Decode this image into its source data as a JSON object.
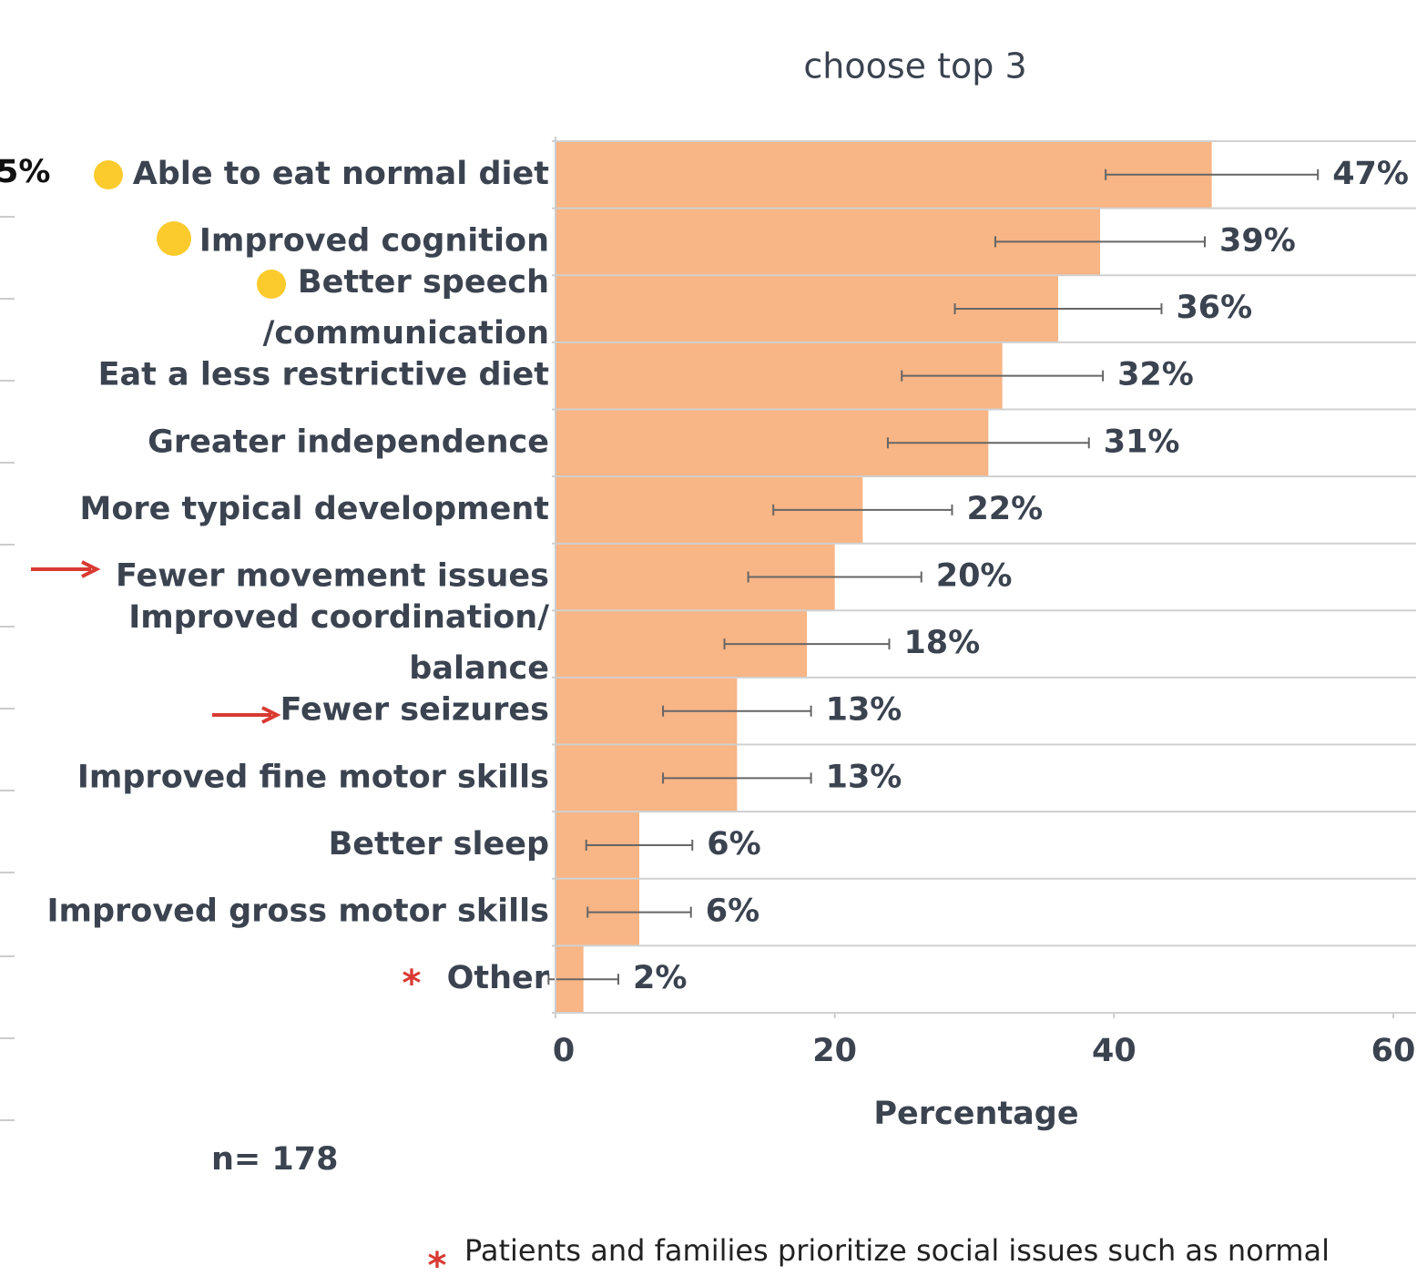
{
  "chart_data": {
    "type": "bar",
    "orientation": "horizontal",
    "title": "choose top 3",
    "x_label": "Percentage",
    "clipped_left_label": "5%",
    "sample_size": "n= 178",
    "category_marker": "*",
    "footnote_marker": "*",
    "footnote": "Patients and families prioritize social issues such as normal",
    "categories": [
      "Able to eat normal diet",
      "Improved cognition",
      "Better speech\n/communication",
      "Eat a less restrictive diet",
      "Greater independence",
      "More typical development",
      "Fewer movement issues",
      "Improved coordination/\nbalance",
      "Fewer seizures",
      "Improved fine motor skills",
      "Better sleep",
      "Improved gross motor skills",
      "Other"
    ],
    "values": [
      47,
      39,
      36,
      32,
      31,
      22,
      20,
      18,
      13,
      13,
      6,
      6,
      2
    ],
    "value_labels": [
      "47%",
      "39%",
      "36%",
      "32%",
      "31%",
      "22%",
      "20%",
      "18%",
      "13%",
      "13%",
      "6%",
      "6%",
      "2%"
    ],
    "errors": [
      7.6,
      7.5,
      7.4,
      7.2,
      7.2,
      6.4,
      6.2,
      5.9,
      5.3,
      5.3,
      3.8,
      3.7,
      2.5
    ],
    "color": "#f8b585",
    "xlim": [
      0,
      60
    ],
    "xticks": [
      0,
      20,
      40,
      60
    ],
    "grid": true
  }
}
